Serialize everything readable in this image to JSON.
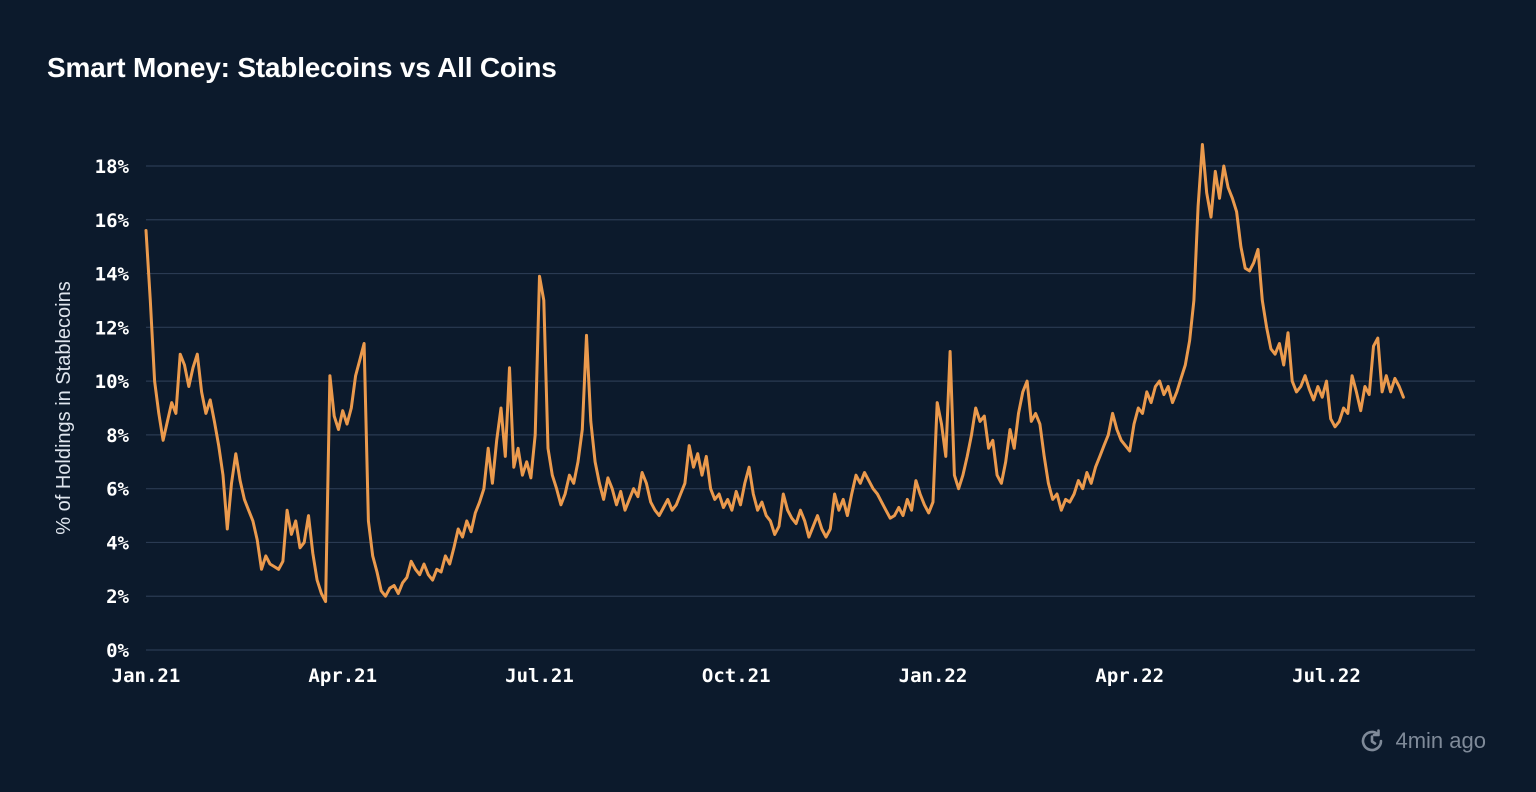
{
  "title": "Smart Money: Stablecoins vs All Coins",
  "updated": {
    "icon": "refresh-clock-icon",
    "text": "4min ago"
  },
  "colors": {
    "background": "#0c1a2c",
    "line": "#eb9a4d",
    "grid": "#2a3a52",
    "axis_text": "#ffffff",
    "muted": "#7f8a99"
  },
  "chart_data": {
    "type": "line",
    "title": "Smart Money: Stablecoins vs All Coins",
    "xlabel": "",
    "ylabel": "% of Holdings in Stablecoins",
    "ylim": [
      0,
      18
    ],
    "yticks": [
      0,
      2,
      4,
      6,
      8,
      10,
      12,
      14,
      16,
      18
    ],
    "ytick_labels": [
      "0%",
      "2%",
      "4%",
      "6%",
      "8%",
      "10%",
      "12%",
      "14%",
      "16%",
      "18%"
    ],
    "xlim": [
      0,
      630
    ],
    "xticks": [
      0,
      92,
      184,
      276,
      368,
      460,
      552
    ],
    "xtick_labels": [
      "Jan.21",
      "Apr.21",
      "Jul.21",
      "Oct.21",
      "Jan.22",
      "Apr.22",
      "Jul.22"
    ],
    "x_unit": "days since 2021-01-01",
    "grid": true,
    "series": [
      {
        "name": "% of Holdings in Stablecoins",
        "points": [
          [
            0,
            15.6
          ],
          [
            2,
            13.0
          ],
          [
            4,
            10.0
          ],
          [
            6,
            8.8
          ],
          [
            8,
            7.8
          ],
          [
            10,
            8.5
          ],
          [
            12,
            9.2
          ],
          [
            14,
            8.8
          ],
          [
            16,
            11.0
          ],
          [
            18,
            10.6
          ],
          [
            20,
            9.8
          ],
          [
            22,
            10.5
          ],
          [
            24,
            11.0
          ],
          [
            26,
            9.6
          ],
          [
            28,
            8.8
          ],
          [
            30,
            9.3
          ],
          [
            32,
            8.5
          ],
          [
            34,
            7.6
          ],
          [
            36,
            6.5
          ],
          [
            38,
            4.5
          ],
          [
            40,
            6.2
          ],
          [
            42,
            7.3
          ],
          [
            44,
            6.3
          ],
          [
            46,
            5.6
          ],
          [
            48,
            5.2
          ],
          [
            50,
            4.8
          ],
          [
            52,
            4.1
          ],
          [
            54,
            3.0
          ],
          [
            56,
            3.5
          ],
          [
            58,
            3.2
          ],
          [
            60,
            3.1
          ],
          [
            62,
            3.0
          ],
          [
            64,
            3.3
          ],
          [
            66,
            5.2
          ],
          [
            68,
            4.3
          ],
          [
            70,
            4.8
          ],
          [
            72,
            3.8
          ],
          [
            74,
            4.0
          ],
          [
            76,
            5.0
          ],
          [
            78,
            3.6
          ],
          [
            80,
            2.6
          ],
          [
            82,
            2.1
          ],
          [
            84,
            1.8
          ],
          [
            86,
            10.2
          ],
          [
            88,
            8.7
          ],
          [
            90,
            8.2
          ],
          [
            92,
            8.9
          ],
          [
            94,
            8.4
          ],
          [
            96,
            9.0
          ],
          [
            98,
            10.2
          ],
          [
            100,
            10.8
          ],
          [
            102,
            11.4
          ],
          [
            104,
            4.8
          ],
          [
            106,
            3.5
          ],
          [
            108,
            2.9
          ],
          [
            110,
            2.2
          ],
          [
            112,
            2.0
          ],
          [
            114,
            2.3
          ],
          [
            116,
            2.4
          ],
          [
            118,
            2.1
          ],
          [
            120,
            2.5
          ],
          [
            122,
            2.7
          ],
          [
            124,
            3.3
          ],
          [
            126,
            3.0
          ],
          [
            128,
            2.8
          ],
          [
            130,
            3.2
          ],
          [
            132,
            2.8
          ],
          [
            134,
            2.6
          ],
          [
            136,
            3.0
          ],
          [
            138,
            2.9
          ],
          [
            140,
            3.5
          ],
          [
            142,
            3.2
          ],
          [
            144,
            3.8
          ],
          [
            146,
            4.5
          ],
          [
            148,
            4.2
          ],
          [
            150,
            4.8
          ],
          [
            152,
            4.4
          ],
          [
            154,
            5.1
          ],
          [
            156,
            5.5
          ],
          [
            158,
            6.0
          ],
          [
            160,
            7.5
          ],
          [
            162,
            6.2
          ],
          [
            164,
            7.8
          ],
          [
            166,
            9.0
          ],
          [
            168,
            7.2
          ],
          [
            170,
            10.5
          ],
          [
            172,
            6.8
          ],
          [
            174,
            7.5
          ],
          [
            176,
            6.5
          ],
          [
            178,
            7.0
          ],
          [
            180,
            6.4
          ],
          [
            182,
            8.0
          ],
          [
            184,
            13.9
          ],
          [
            186,
            13.0
          ],
          [
            188,
            7.5
          ],
          [
            190,
            6.5
          ],
          [
            192,
            6.0
          ],
          [
            194,
            5.4
          ],
          [
            196,
            5.8
          ],
          [
            198,
            6.5
          ],
          [
            200,
            6.2
          ],
          [
            202,
            7.0
          ],
          [
            204,
            8.2
          ],
          [
            206,
            11.7
          ],
          [
            208,
            8.5
          ],
          [
            210,
            7.0
          ],
          [
            212,
            6.2
          ],
          [
            214,
            5.6
          ],
          [
            216,
            6.4
          ],
          [
            218,
            6.0
          ],
          [
            220,
            5.4
          ],
          [
            222,
            5.9
          ],
          [
            224,
            5.2
          ],
          [
            226,
            5.6
          ],
          [
            228,
            6.0
          ],
          [
            230,
            5.7
          ],
          [
            232,
            6.6
          ],
          [
            234,
            6.2
          ],
          [
            236,
            5.5
          ],
          [
            238,
            5.2
          ],
          [
            240,
            5.0
          ],
          [
            242,
            5.3
          ],
          [
            244,
            5.6
          ],
          [
            246,
            5.2
          ],
          [
            248,
            5.4
          ],
          [
            250,
            5.8
          ],
          [
            252,
            6.2
          ],
          [
            254,
            7.6
          ],
          [
            256,
            6.8
          ],
          [
            258,
            7.3
          ],
          [
            260,
            6.5
          ],
          [
            262,
            7.2
          ],
          [
            264,
            6.0
          ],
          [
            266,
            5.6
          ],
          [
            268,
            5.8
          ],
          [
            270,
            5.3
          ],
          [
            272,
            5.6
          ],
          [
            274,
            5.2
          ],
          [
            276,
            5.9
          ],
          [
            278,
            5.4
          ],
          [
            280,
            6.2
          ],
          [
            282,
            6.8
          ],
          [
            284,
            5.8
          ],
          [
            286,
            5.2
          ],
          [
            288,
            5.5
          ],
          [
            290,
            5.0
          ],
          [
            292,
            4.8
          ],
          [
            294,
            4.3
          ],
          [
            296,
            4.6
          ],
          [
            298,
            5.8
          ],
          [
            300,
            5.2
          ],
          [
            302,
            4.9
          ],
          [
            304,
            4.7
          ],
          [
            306,
            5.2
          ],
          [
            308,
            4.8
          ],
          [
            310,
            4.2
          ],
          [
            312,
            4.6
          ],
          [
            314,
            5.0
          ],
          [
            316,
            4.5
          ],
          [
            318,
            4.2
          ],
          [
            320,
            4.5
          ],
          [
            322,
            5.8
          ],
          [
            324,
            5.2
          ],
          [
            326,
            5.6
          ],
          [
            328,
            5.0
          ],
          [
            330,
            5.8
          ],
          [
            332,
            6.5
          ],
          [
            334,
            6.2
          ],
          [
            336,
            6.6
          ],
          [
            338,
            6.3
          ],
          [
            340,
            6.0
          ],
          [
            342,
            5.8
          ],
          [
            344,
            5.5
          ],
          [
            346,
            5.2
          ],
          [
            348,
            4.9
          ],
          [
            350,
            5.0
          ],
          [
            352,
            5.3
          ],
          [
            354,
            5.0
          ],
          [
            356,
            5.6
          ],
          [
            358,
            5.2
          ],
          [
            360,
            6.3
          ],
          [
            362,
            5.8
          ],
          [
            364,
            5.4
          ],
          [
            366,
            5.1
          ],
          [
            368,
            5.5
          ],
          [
            370,
            9.2
          ],
          [
            372,
            8.4
          ],
          [
            374,
            7.2
          ],
          [
            376,
            11.1
          ],
          [
            378,
            6.5
          ],
          [
            380,
            6.0
          ],
          [
            382,
            6.5
          ],
          [
            384,
            7.2
          ],
          [
            386,
            8.0
          ],
          [
            388,
            9.0
          ],
          [
            390,
            8.5
          ],
          [
            392,
            8.7
          ],
          [
            394,
            7.5
          ],
          [
            396,
            7.8
          ],
          [
            398,
            6.5
          ],
          [
            400,
            6.2
          ],
          [
            402,
            7.0
          ],
          [
            404,
            8.2
          ],
          [
            406,
            7.5
          ],
          [
            408,
            8.8
          ],
          [
            410,
            9.6
          ],
          [
            412,
            10.0
          ],
          [
            414,
            8.5
          ],
          [
            416,
            8.8
          ],
          [
            418,
            8.4
          ],
          [
            420,
            7.2
          ],
          [
            422,
            6.2
          ],
          [
            424,
            5.6
          ],
          [
            426,
            5.8
          ],
          [
            428,
            5.2
          ],
          [
            430,
            5.6
          ],
          [
            432,
            5.5
          ],
          [
            434,
            5.8
          ],
          [
            436,
            6.3
          ],
          [
            438,
            6.0
          ],
          [
            440,
            6.6
          ],
          [
            442,
            6.2
          ],
          [
            444,
            6.8
          ],
          [
            446,
            7.2
          ],
          [
            448,
            7.6
          ],
          [
            450,
            8.0
          ],
          [
            452,
            8.8
          ],
          [
            454,
            8.2
          ],
          [
            456,
            7.8
          ],
          [
            458,
            7.6
          ],
          [
            460,
            7.4
          ],
          [
            462,
            8.4
          ],
          [
            464,
            9.0
          ],
          [
            466,
            8.8
          ],
          [
            468,
            9.6
          ],
          [
            470,
            9.2
          ],
          [
            472,
            9.8
          ],
          [
            474,
            10.0
          ],
          [
            476,
            9.5
          ],
          [
            478,
            9.8
          ],
          [
            480,
            9.2
          ],
          [
            482,
            9.6
          ],
          [
            484,
            10.1
          ],
          [
            486,
            10.6
          ],
          [
            488,
            11.5
          ],
          [
            490,
            13.0
          ],
          [
            492,
            16.5
          ],
          [
            494,
            18.8
          ],
          [
            496,
            17.0
          ],
          [
            498,
            16.1
          ],
          [
            500,
            17.8
          ],
          [
            502,
            16.8
          ],
          [
            504,
            18.0
          ],
          [
            506,
            17.2
          ],
          [
            508,
            16.8
          ],
          [
            510,
            16.3
          ],
          [
            512,
            15.0
          ],
          [
            514,
            14.2
          ],
          [
            516,
            14.1
          ],
          [
            518,
            14.4
          ],
          [
            520,
            14.9
          ],
          [
            522,
            13.0
          ],
          [
            524,
            12.0
          ],
          [
            526,
            11.2
          ],
          [
            528,
            11.0
          ],
          [
            530,
            11.4
          ],
          [
            532,
            10.6
          ],
          [
            534,
            11.8
          ],
          [
            536,
            10.0
          ],
          [
            538,
            9.6
          ],
          [
            540,
            9.8
          ],
          [
            542,
            10.2
          ],
          [
            544,
            9.7
          ],
          [
            546,
            9.3
          ],
          [
            548,
            9.8
          ],
          [
            550,
            9.4
          ],
          [
            552,
            10.0
          ],
          [
            554,
            8.6
          ],
          [
            556,
            8.3
          ],
          [
            558,
            8.5
          ],
          [
            560,
            9.0
          ],
          [
            562,
            8.8
          ],
          [
            564,
            10.2
          ],
          [
            566,
            9.6
          ],
          [
            568,
            8.9
          ],
          [
            570,
            9.8
          ],
          [
            572,
            9.5
          ],
          [
            574,
            11.3
          ],
          [
            576,
            11.6
          ],
          [
            578,
            9.6
          ],
          [
            580,
            10.2
          ],
          [
            582,
            9.6
          ],
          [
            584,
            10.1
          ],
          [
            586,
            9.8
          ],
          [
            588,
            9.4
          ]
        ]
      }
    ]
  }
}
